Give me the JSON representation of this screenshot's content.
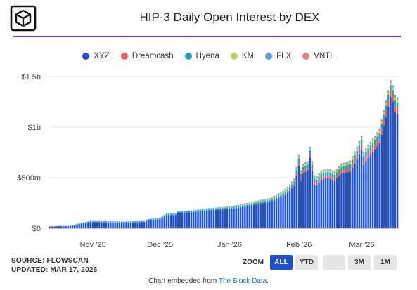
{
  "title": "HIP-3 Daily Open Interest by DEX",
  "colors": {
    "accent": "#7b2fbf",
    "active_button": "#1e50d1"
  },
  "legend": [
    {
      "name": "XYZ",
      "color": "#1e50d1"
    },
    {
      "name": "Dreamcash",
      "color": "#ec5a5a"
    },
    {
      "name": "Hyena",
      "color": "#1fa7b8"
    },
    {
      "name": "KM",
      "color": "#b7d45b"
    },
    {
      "name": "FLX",
      "color": "#5b9be6"
    },
    {
      "name": "VNTL",
      "color": "#f08080"
    }
  ],
  "chart_data": {
    "type": "bar",
    "stacked": true,
    "title": "HIP-3 Daily Open Interest by DEX",
    "x_range": [
      "2025-10-13",
      "2026-03-17"
    ],
    "x_ticks": [
      "Nov '25",
      "Dec '25",
      "Jan '26",
      "Feb '26",
      "Mar '26"
    ],
    "y_ticks": [
      "$0",
      "$500m",
      "$1b",
      "$1.5b"
    ],
    "ylim": [
      0,
      1500000000
    ],
    "grid": true,
    "legend_position": "top",
    "series_units": "USD millions",
    "anchor_dates": [
      "2025-10-13",
      "2025-10-22",
      "2025-10-27",
      "2025-10-31",
      "2025-11-15",
      "2025-11-24",
      "2025-11-26",
      "2025-12-01",
      "2025-12-04",
      "2025-12-08",
      "2025-12-09",
      "2025-12-15",
      "2025-12-22",
      "2025-12-29",
      "2026-01-05",
      "2026-01-12",
      "2026-01-19",
      "2026-01-25",
      "2026-01-28",
      "2026-01-30",
      "2026-02-01",
      "2026-02-02",
      "2026-02-03",
      "2026-02-05",
      "2026-02-06",
      "2026-02-08",
      "2026-02-09",
      "2026-02-11",
      "2026-02-14",
      "2026-02-17",
      "2026-02-20",
      "2026-02-24",
      "2026-02-27",
      "2026-03-01",
      "2026-03-02",
      "2026-03-04",
      "2026-03-07",
      "2026-03-09",
      "2026-03-12",
      "2026-03-14",
      "2026-03-15",
      "2026-03-16",
      "2026-03-17"
    ],
    "series": [
      {
        "name": "XYZ",
        "values": [
          15,
          20,
          45,
          60,
          55,
          60,
          80,
          88,
          130,
          130,
          150,
          160,
          175,
          185,
          200,
          230,
          260,
          320,
          370,
          420,
          620,
          470,
          540,
          570,
          700,
          430,
          420,
          480,
          500,
          470,
          540,
          560,
          680,
          780,
          630,
          700,
          780,
          840,
          1100,
          1300,
          1250,
          1150,
          1130
        ]
      },
      {
        "name": "Dreamcash",
        "values": [
          0,
          0,
          0,
          0,
          0,
          0,
          0,
          0,
          0,
          0,
          0,
          0,
          0,
          0,
          0,
          0,
          0,
          5,
          10,
          15,
          30,
          30,
          30,
          25,
          30,
          25,
          25,
          25,
          25,
          25,
          30,
          35,
          40,
          45,
          40,
          40,
          45,
          45,
          60,
          60,
          60,
          60,
          60
        ]
      },
      {
        "name": "Hyena",
        "values": [
          3,
          4,
          6,
          8,
          8,
          8,
          8,
          9,
          10,
          10,
          12,
          12,
          14,
          15,
          16,
          18,
          20,
          22,
          25,
          28,
          40,
          35,
          35,
          35,
          40,
          35,
          35,
          35,
          35,
          35,
          35,
          40,
          45,
          50,
          45,
          45,
          50,
          55,
          55,
          55,
          55,
          55,
          55
        ]
      },
      {
        "name": "KM",
        "values": [
          0,
          0,
          0,
          0,
          0,
          0,
          0,
          0,
          0,
          0,
          0,
          0,
          3,
          5,
          6,
          8,
          10,
          12,
          15,
          15,
          20,
          20,
          20,
          20,
          20,
          18,
          18,
          18,
          18,
          18,
          20,
          20,
          25,
          25,
          25,
          25,
          25,
          25,
          30,
          30,
          30,
          30,
          30
        ]
      },
      {
        "name": "FLX",
        "values": [
          2,
          2,
          3,
          4,
          4,
          4,
          5,
          5,
          5,
          5,
          5,
          5,
          5,
          5,
          6,
          6,
          7,
          8,
          8,
          8,
          10,
          10,
          10,
          10,
          10,
          10,
          10,
          10,
          10,
          10,
          10,
          10,
          12,
          12,
          12,
          12,
          12,
          12,
          15,
          15,
          15,
          15,
          15
        ]
      },
      {
        "name": "VNTL",
        "values": [
          0,
          0,
          0,
          0,
          0,
          0,
          0,
          0,
          0,
          0,
          0,
          0,
          0,
          0,
          2,
          3,
          3,
          4,
          5,
          5,
          5,
          5,
          5,
          5,
          5,
          5,
          5,
          5,
          5,
          5,
          5,
          5,
          5,
          5,
          5,
          5,
          5,
          5,
          5,
          5,
          5,
          5,
          5
        ]
      }
    ]
  },
  "source": {
    "line1": "SOURCE: FLOWSCAN",
    "line2": "UPDATED: MAR 17, 2026"
  },
  "zoom": {
    "label": "ZOOM",
    "buttons": [
      {
        "label": "ALL",
        "active": true
      },
      {
        "label": "YTD",
        "active": false
      },
      {
        "label": "",
        "active": false
      },
      {
        "label": "3M",
        "active": false
      },
      {
        "label": "1M",
        "active": false
      }
    ]
  },
  "embed": {
    "prefix": "Chart embedded from ",
    "link": "The Block Data",
    "suffix": "."
  }
}
